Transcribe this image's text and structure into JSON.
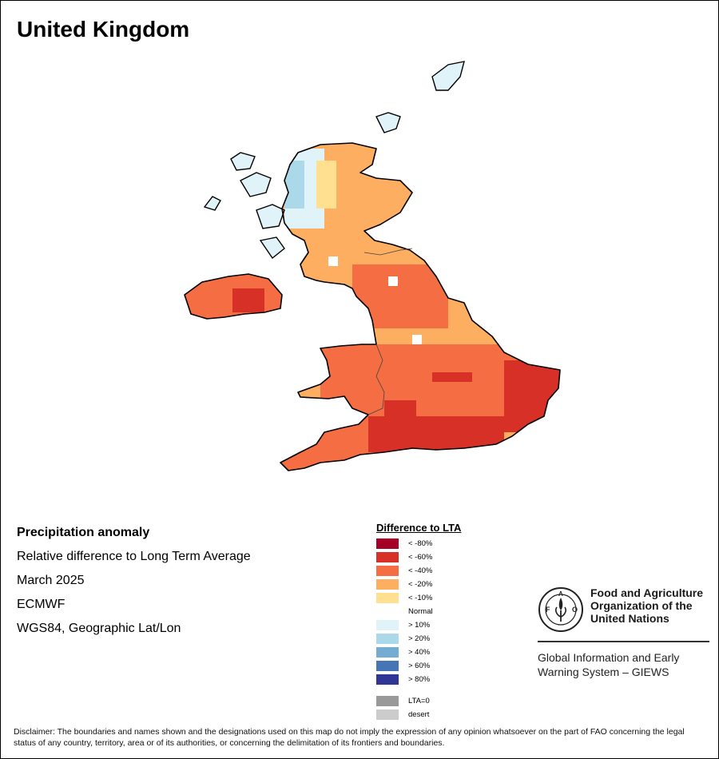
{
  "map_title": "United Kingdom",
  "info": {
    "heading": "Precipitation anomaly",
    "subtitle": "Relative difference to Long Term Average",
    "period": "March 2025",
    "source": "ECMWF",
    "projection": "WGS84, Geographic Lat/Lon"
  },
  "legend": {
    "title": "Difference to LTA",
    "items": [
      {
        "label": "< -80%",
        "color": "#a50026"
      },
      {
        "label": "< -60%",
        "color": "#d73027"
      },
      {
        "label": "< -40%",
        "color": "#f46d43"
      },
      {
        "label": "< -20%",
        "color": "#fdae61"
      },
      {
        "label": "< -10%",
        "color": "#fee090"
      },
      {
        "label": "Normal",
        "color": "#ffffff"
      },
      {
        "label": "> 10%",
        "color": "#e0f3f8"
      },
      {
        "label": "> 20%",
        "color": "#abd9e9"
      },
      {
        "label": "> 40%",
        "color": "#74add1"
      },
      {
        "label": "> 60%",
        "color": "#4575b4"
      },
      {
        "label": "> 80%",
        "color": "#313695"
      }
    ],
    "extra": [
      {
        "label": "LTA=0",
        "color": "#999999"
      },
      {
        "label": "desert",
        "color": "#cccccc"
      }
    ]
  },
  "fao": {
    "org_line1": "Food and Agriculture",
    "org_line2": "Organization of the",
    "org_line3": "United Nations",
    "system_line1": "Global Information and Early",
    "system_line2": "Warning System – GIEWS"
  },
  "disclaimer": "Disclaimer: The boundaries and names shown and the designations used on this map do not imply the expression of any opinion whatsoever on the part of FAO concerning the legal status of any country, territory, area or of its authorities, or concerning the delimitation of its frontiers and boundaries."
}
